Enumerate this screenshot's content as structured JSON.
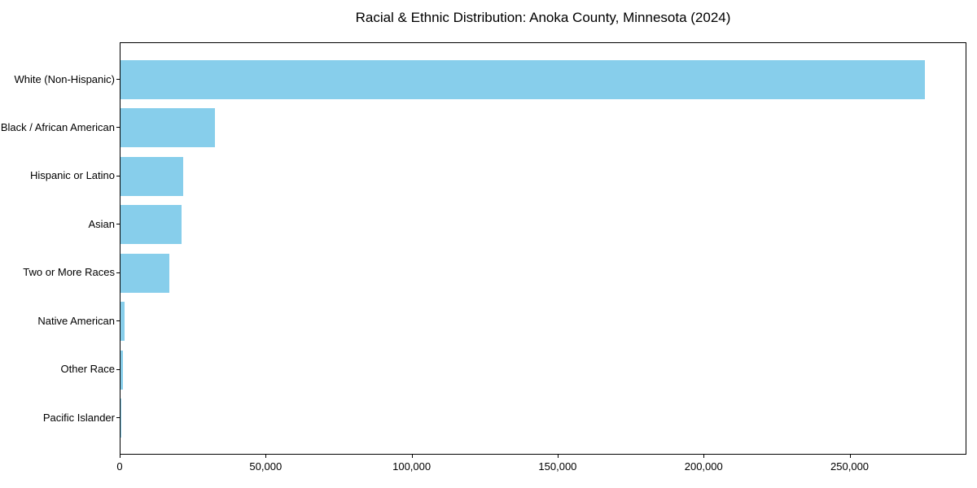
{
  "chart_data": {
    "type": "bar",
    "orientation": "horizontal",
    "title": "Racial & Ethnic Distribution: Anoka County, Minnesota (2024)",
    "categories": [
      "White (Non-Hispanic)",
      "Black / African American",
      "Hispanic or Latino",
      "Asian",
      "Two or More Races",
      "Native American",
      "Other Race",
      "Pacific Islander"
    ],
    "values": [
      276000,
      32300,
      21500,
      21000,
      16900,
      1400,
      950,
      200
    ],
    "xlabel": "",
    "ylabel": "",
    "xlim": [
      0,
      290000
    ],
    "x_ticks": [
      0,
      50000,
      100000,
      150000,
      200000,
      250000
    ],
    "x_tick_labels": [
      "0",
      "50,000",
      "100,000",
      "150,000",
      "200,000",
      "250,000"
    ],
    "bar_color": "#87CEEB",
    "background_color": "#ffffff",
    "spine_color": "#000000",
    "grid": false,
    "legend": null
  }
}
